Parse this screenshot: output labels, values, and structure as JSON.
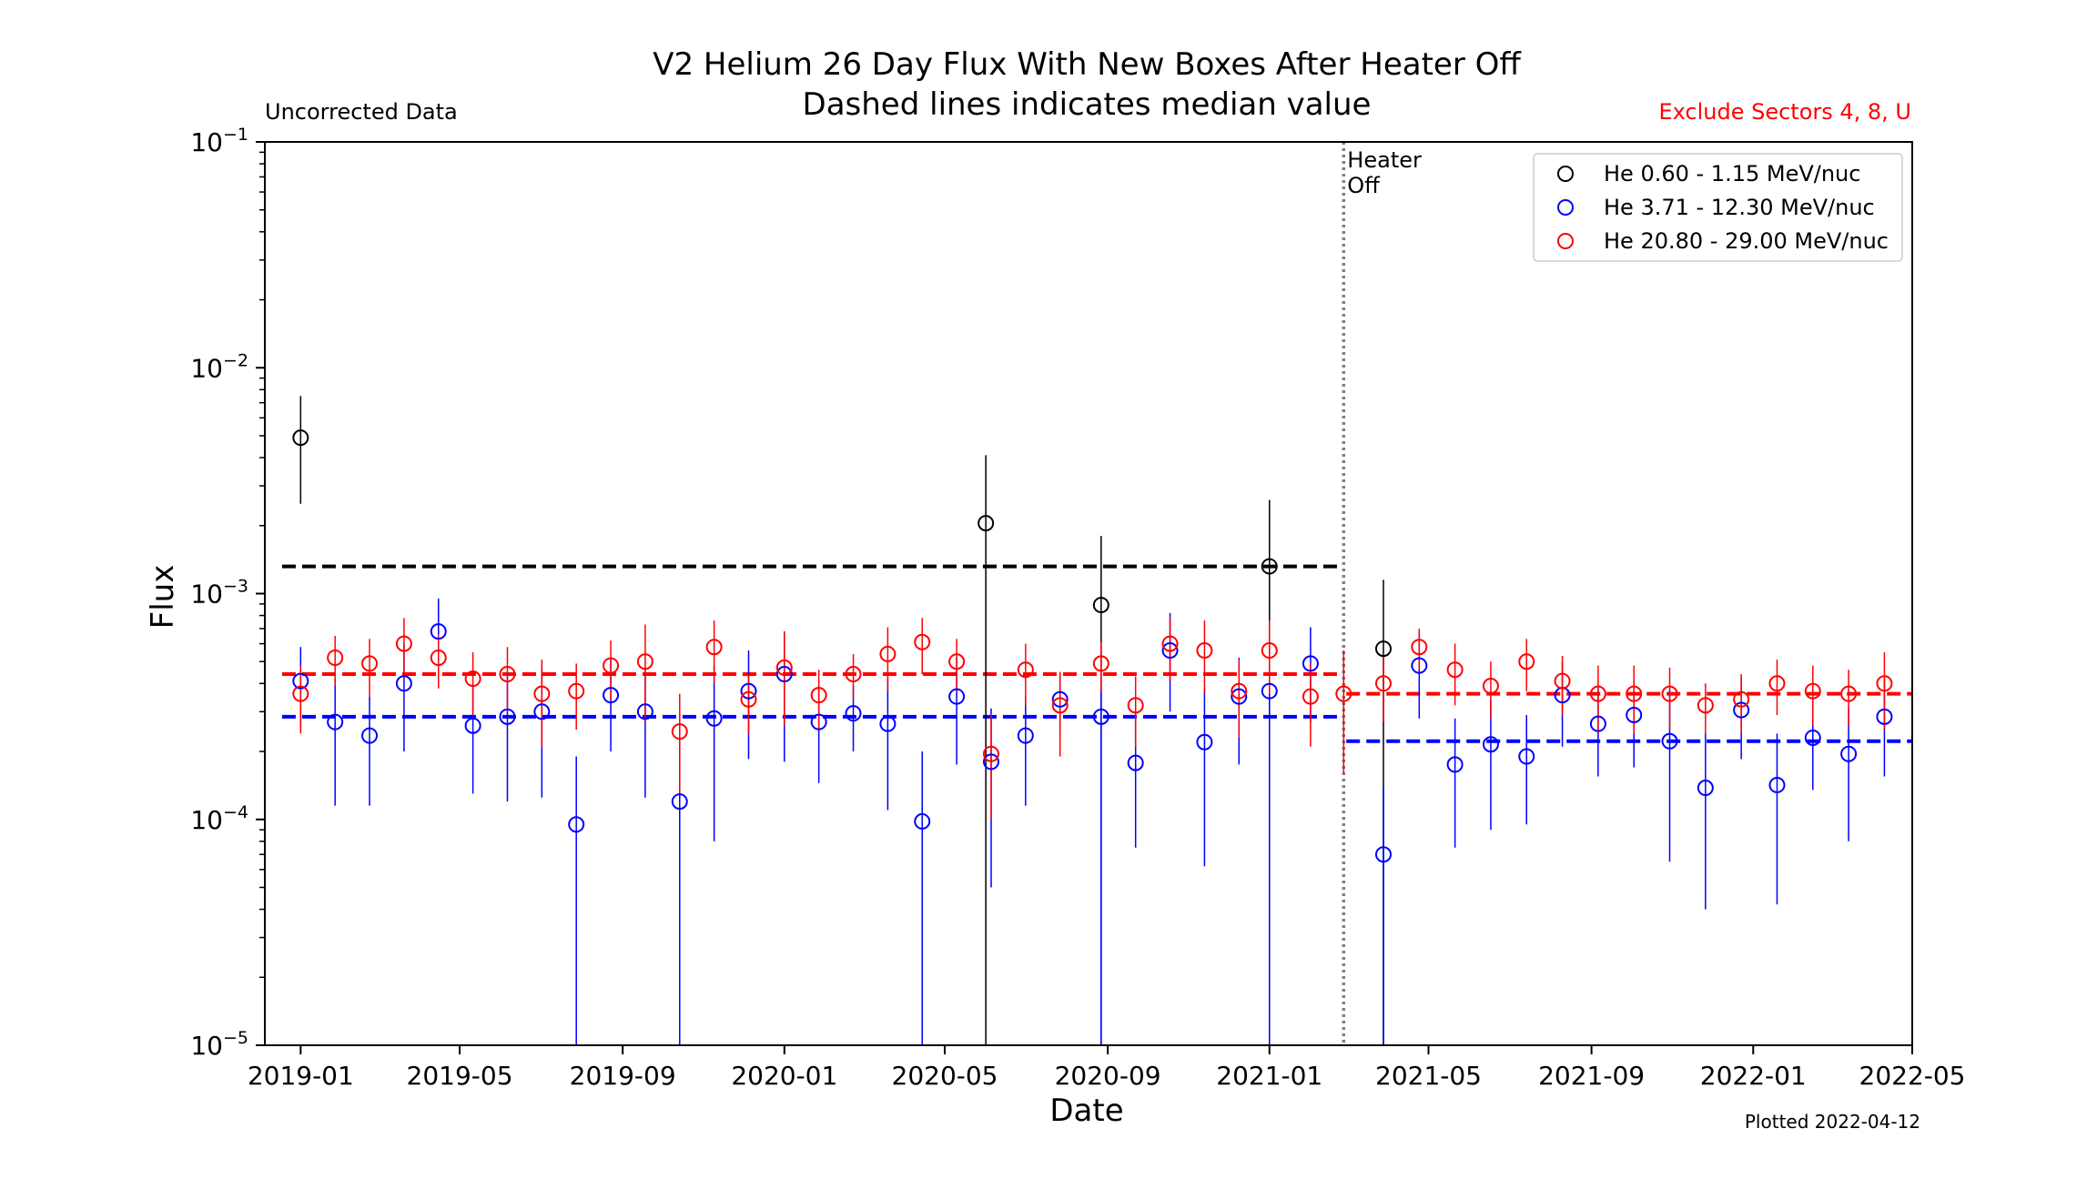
{
  "chart_data": {
    "type": "scatter",
    "title": "V2 Helium 26 Day Flux With New Boxes After Heater Off",
    "subtitle": "Dashed lines indicates median value",
    "xlabel": "Date",
    "ylabel": "Flux",
    "y_scale": "log",
    "ylim": [
      1e-05,
      0.1
    ],
    "y_ticks": [
      {
        "value": 0.1,
        "base": "10",
        "exp": "−1"
      },
      {
        "value": 0.01,
        "base": "10",
        "exp": "−2"
      },
      {
        "value": 0.001,
        "base": "10",
        "exp": "−3"
      },
      {
        "value": 0.0001,
        "base": "10",
        "exp": "−4"
      },
      {
        "value": 1e-05,
        "base": "10",
        "exp": "−5"
      }
    ],
    "xlim": [
      "2018-12-05",
      "2022-05-01"
    ],
    "x_ticks": [
      "2019-01",
      "2019-05",
      "2019-09",
      "2020-01",
      "2020-05",
      "2020-09",
      "2021-01",
      "2021-05",
      "2021-09",
      "2022-01",
      "2022-05"
    ],
    "annotations": {
      "top_left": "Uncorrected Data",
      "top_right": "Exclude Sectors 4, 8, U",
      "heater_line1": "Heater",
      "heater_line2": "Off",
      "plotted": "Plotted 2022-04-12"
    },
    "heater_off_date": "2021-02-26",
    "colors": {
      "black": "#000000",
      "blue": "#0000ff",
      "red": "#ff0000",
      "vline": "#808080"
    },
    "legend_position": "top-right",
    "series": [
      {
        "name": "He 0.60 - 1.15 MeV/nuc",
        "color": "#000000",
        "medians": [
          {
            "from": "2018-12-18",
            "to": "2021-02-25",
            "value": 0.00132
          }
        ],
        "points": [
          {
            "x": "2019-01-01",
            "y": 0.0049,
            "lo": 0.0025,
            "hi": 0.0075
          },
          {
            "x": "2020-06-01",
            "y": 0.00205,
            "lo": 1e-05,
            "hi": 0.0041
          },
          {
            "x": "2020-08-27",
            "y": 0.00089,
            "lo": 1e-05,
            "hi": 0.0018
          },
          {
            "x": "2021-01-01",
            "y": 0.00132,
            "lo": 1e-05,
            "hi": 0.0026
          },
          {
            "x": "2021-03-28",
            "y": 0.00057,
            "lo": 1e-05,
            "hi": 0.00115
          }
        ]
      },
      {
        "name": "He 3.71 - 12.30 MeV/nuc",
        "color": "#0000ff",
        "medians": [
          {
            "from": "2018-12-18",
            "to": "2021-02-25",
            "value": 0.000285
          },
          {
            "from": "2021-02-28",
            "to": "2022-05-01",
            "value": 0.000222
          }
        ],
        "points": [
          {
            "x": "2019-01-01",
            "y": 0.00041,
            "lo": 0.00026,
            "hi": 0.00058
          },
          {
            "x": "2019-01-27",
            "y": 0.00027,
            "lo": 0.000115,
            "hi": 0.00042
          },
          {
            "x": "2019-02-22",
            "y": 0.000235,
            "lo": 0.000115,
            "hi": 0.00035
          },
          {
            "x": "2019-03-20",
            "y": 0.0004,
            "lo": 0.0002,
            "hi": 0.0006
          },
          {
            "x": "2019-04-15",
            "y": 0.00068,
            "lo": 0.00042,
            "hi": 0.00095
          },
          {
            "x": "2019-05-11",
            "y": 0.00026,
            "lo": 0.00013,
            "hi": 0.00039
          },
          {
            "x": "2019-06-06",
            "y": 0.000285,
            "lo": 0.00012,
            "hi": 0.00045
          },
          {
            "x": "2019-07-02",
            "y": 0.0003,
            "lo": 0.000125,
            "hi": 0.00047
          },
          {
            "x": "2019-07-28",
            "y": 9.5e-05,
            "lo": 1e-05,
            "hi": 0.00019
          },
          {
            "x": "2019-08-23",
            "y": 0.000355,
            "lo": 0.0002,
            "hi": 0.00051
          },
          {
            "x": "2019-09-18",
            "y": 0.0003,
            "lo": 0.000125,
            "hi": 0.00047
          },
          {
            "x": "2019-10-14",
            "y": 0.00012,
            "lo": 1e-05,
            "hi": 0.00024
          },
          {
            "x": "2019-11-09",
            "y": 0.00028,
            "lo": 8e-05,
            "hi": 0.00048
          },
          {
            "x": "2019-12-05",
            "y": 0.00037,
            "lo": 0.000185,
            "hi": 0.00056
          },
          {
            "x": "2020-01-01",
            "y": 0.00044,
            "lo": 0.00018,
            "hi": 0.00068
          },
          {
            "x": "2020-01-27",
            "y": 0.00027,
            "lo": 0.000145,
            "hi": 0.00039
          },
          {
            "x": "2020-02-22",
            "y": 0.000295,
            "lo": 0.0002,
            "hi": 0.00039
          },
          {
            "x": "2020-03-19",
            "y": 0.000265,
            "lo": 0.00011,
            "hi": 0.00042
          },
          {
            "x": "2020-04-14",
            "y": 9.8e-05,
            "lo": 1e-05,
            "hi": 0.0002
          },
          {
            "x": "2020-05-10",
            "y": 0.00035,
            "lo": 0.000175,
            "hi": 0.00052
          },
          {
            "x": "2020-06-05",
            "y": 0.00018,
            "lo": 5e-05,
            "hi": 0.00031
          },
          {
            "x": "2020-07-01",
            "y": 0.000235,
            "lo": 0.000115,
            "hi": 0.00035
          },
          {
            "x": "2020-07-27",
            "y": 0.00034,
            "lo": 0.00024,
            "hi": 0.00044
          },
          {
            "x": "2020-08-27",
            "y": 0.000285,
            "lo": 1e-05,
            "hi": 0.00058
          },
          {
            "x": "2020-09-22",
            "y": 0.000178,
            "lo": 7.5e-05,
            "hi": 0.00028
          },
          {
            "x": "2020-10-18",
            "y": 0.00056,
            "lo": 0.0003,
            "hi": 0.00082
          },
          {
            "x": "2020-11-13",
            "y": 0.00022,
            "lo": 6.2e-05,
            "hi": 0.00038
          },
          {
            "x": "2020-12-09",
            "y": 0.00035,
            "lo": 0.000175,
            "hi": 0.00052
          },
          {
            "x": "2021-01-01",
            "y": 0.00037,
            "lo": 1e-05,
            "hi": 0.00075
          },
          {
            "x": "2021-02-01",
            "y": 0.00049,
            "lo": 0.00027,
            "hi": 0.00071
          },
          {
            "x": "2021-03-28",
            "y": 7e-05,
            "lo": 1e-05,
            "hi": 0.00014
          },
          {
            "x": "2021-04-24",
            "y": 0.00048,
            "lo": 0.00028,
            "hi": 0.00068
          },
          {
            "x": "2021-05-21",
            "y": 0.000175,
            "lo": 7.5e-05,
            "hi": 0.00028
          },
          {
            "x": "2021-06-17",
            "y": 0.000215,
            "lo": 9e-05,
            "hi": 0.00034
          },
          {
            "x": "2021-07-14",
            "y": 0.00019,
            "lo": 9.5e-05,
            "hi": 0.00029
          },
          {
            "x": "2021-08-10",
            "y": 0.000355,
            "lo": 0.00021,
            "hi": 0.0005
          },
          {
            "x": "2021-09-06",
            "y": 0.000265,
            "lo": 0.000155,
            "hi": 0.00038
          },
          {
            "x": "2021-10-03",
            "y": 0.00029,
            "lo": 0.00017,
            "hi": 0.00041
          },
          {
            "x": "2021-10-30",
            "y": 0.000222,
            "lo": 6.5e-05,
            "hi": 0.00038
          },
          {
            "x": "2021-11-26",
            "y": 0.000138,
            "lo": 4e-05,
            "hi": 0.00024
          },
          {
            "x": "2021-12-23",
            "y": 0.000305,
            "lo": 0.000185,
            "hi": 0.00043
          },
          {
            "x": "2022-01-19",
            "y": 0.000142,
            "lo": 4.2e-05,
            "hi": 0.00024
          },
          {
            "x": "2022-02-15",
            "y": 0.00023,
            "lo": 0.000135,
            "hi": 0.00033
          },
          {
            "x": "2022-03-14",
            "y": 0.000195,
            "lo": 8e-05,
            "hi": 0.00031
          },
          {
            "x": "2022-04-10",
            "y": 0.000285,
            "lo": 0.000155,
            "hi": 0.00042
          }
        ]
      },
      {
        "name": "He 20.80 - 29.00 MeV/nuc",
        "color": "#ff0000",
        "medians": [
          {
            "from": "2018-12-18",
            "to": "2021-02-25",
            "value": 0.00044
          },
          {
            "from": "2021-02-28",
            "to": "2022-05-01",
            "value": 0.00036
          }
        ],
        "points": [
          {
            "x": "2019-01-01",
            "y": 0.00036,
            "lo": 0.00024,
            "hi": 0.00048
          },
          {
            "x": "2019-01-27",
            "y": 0.00052,
            "lo": 0.00039,
            "hi": 0.00065
          },
          {
            "x": "2019-02-22",
            "y": 0.00049,
            "lo": 0.00035,
            "hi": 0.00063
          },
          {
            "x": "2019-03-20",
            "y": 0.0006,
            "lo": 0.00042,
            "hi": 0.00078
          },
          {
            "x": "2019-04-15",
            "y": 0.00052,
            "lo": 0.00038,
            "hi": 0.00066
          },
          {
            "x": "2019-05-11",
            "y": 0.00042,
            "lo": 0.00029,
            "hi": 0.00055
          },
          {
            "x": "2019-06-06",
            "y": 0.00044,
            "lo": 0.0003,
            "hi": 0.00058
          },
          {
            "x": "2019-07-02",
            "y": 0.00036,
            "lo": 0.00021,
            "hi": 0.00051
          },
          {
            "x": "2019-07-28",
            "y": 0.00037,
            "lo": 0.00025,
            "hi": 0.00049
          },
          {
            "x": "2019-08-23",
            "y": 0.00048,
            "lo": 0.00034,
            "hi": 0.00062
          },
          {
            "x": "2019-09-18",
            "y": 0.0005,
            "lo": 0.00027,
            "hi": 0.00073
          },
          {
            "x": "2019-10-14",
            "y": 0.000245,
            "lo": 0.00013,
            "hi": 0.00036
          },
          {
            "x": "2019-11-09",
            "y": 0.00058,
            "lo": 0.0004,
            "hi": 0.00076
          },
          {
            "x": "2019-12-05",
            "y": 0.00034,
            "lo": 0.00024,
            "hi": 0.00044
          },
          {
            "x": "2020-01-01",
            "y": 0.00047,
            "lo": 0.00026,
            "hi": 0.00068
          },
          {
            "x": "2020-01-27",
            "y": 0.000355,
            "lo": 0.00025,
            "hi": 0.00046
          },
          {
            "x": "2020-02-22",
            "y": 0.00044,
            "lo": 0.00034,
            "hi": 0.00054
          },
          {
            "x": "2020-03-19",
            "y": 0.00054,
            "lo": 0.00037,
            "hi": 0.00071
          },
          {
            "x": "2020-04-14",
            "y": 0.00061,
            "lo": 0.00044,
            "hi": 0.00078
          },
          {
            "x": "2020-05-10",
            "y": 0.0005,
            "lo": 0.00037,
            "hi": 0.00063
          },
          {
            "x": "2020-06-05",
            "y": 0.000195,
            "lo": 0.0001,
            "hi": 0.00029
          },
          {
            "x": "2020-07-01",
            "y": 0.00046,
            "lo": 0.00032,
            "hi": 0.0006
          },
          {
            "x": "2020-07-27",
            "y": 0.00032,
            "lo": 0.00019,
            "hi": 0.00045
          },
          {
            "x": "2020-08-27",
            "y": 0.00049,
            "lo": 0.00037,
            "hi": 0.00061
          },
          {
            "x": "2020-09-22",
            "y": 0.00032,
            "lo": 0.00021,
            "hi": 0.00043
          },
          {
            "x": "2020-10-18",
            "y": 0.0006,
            "lo": 0.00041,
            "hi": 0.00079
          },
          {
            "x": "2020-11-13",
            "y": 0.00056,
            "lo": 0.00036,
            "hi": 0.00076
          },
          {
            "x": "2020-12-09",
            "y": 0.00037,
            "lo": 0.00023,
            "hi": 0.00051
          },
          {
            "x": "2021-01-01",
            "y": 0.00056,
            "lo": 0.00036,
            "hi": 0.00076
          },
          {
            "x": "2021-02-01",
            "y": 0.00035,
            "lo": 0.00021,
            "hi": 0.00049
          },
          {
            "x": "2021-02-26",
            "y": 0.00036,
            "lo": 0.00016,
            "hi": 0.00056
          },
          {
            "x": "2021-03-28",
            "y": 0.0004,
            "lo": 0.00027,
            "hi": 0.00053
          },
          {
            "x": "2021-04-24",
            "y": 0.00058,
            "lo": 0.00046,
            "hi": 0.0007
          },
          {
            "x": "2021-05-21",
            "y": 0.00046,
            "lo": 0.00032,
            "hi": 0.0006
          },
          {
            "x": "2021-06-17",
            "y": 0.00039,
            "lo": 0.00028,
            "hi": 0.0005
          },
          {
            "x": "2021-07-14",
            "y": 0.0005,
            "lo": 0.00037,
            "hi": 0.00063
          },
          {
            "x": "2021-08-10",
            "y": 0.00041,
            "lo": 0.00029,
            "hi": 0.00053
          },
          {
            "x": "2021-09-06",
            "y": 0.00036,
            "lo": 0.00024,
            "hi": 0.00048
          },
          {
            "x": "2021-10-03",
            "y": 0.00036,
            "lo": 0.00024,
            "hi": 0.00048
          },
          {
            "x": "2021-10-30",
            "y": 0.00036,
            "lo": 0.00025,
            "hi": 0.00047
          },
          {
            "x": "2021-11-26",
            "y": 0.00032,
            "lo": 0.00024,
            "hi": 0.0004
          },
          {
            "x": "2021-12-23",
            "y": 0.00034,
            "lo": 0.00024,
            "hi": 0.00044
          },
          {
            "x": "2022-01-19",
            "y": 0.0004,
            "lo": 0.00029,
            "hi": 0.00051
          },
          {
            "x": "2022-02-15",
            "y": 0.00037,
            "lo": 0.00026,
            "hi": 0.00048
          },
          {
            "x": "2022-03-14",
            "y": 0.00036,
            "lo": 0.00026,
            "hi": 0.00046
          },
          {
            "x": "2022-04-10",
            "y": 0.0004,
            "lo": 0.00025,
            "hi": 0.00055
          }
        ]
      }
    ]
  }
}
